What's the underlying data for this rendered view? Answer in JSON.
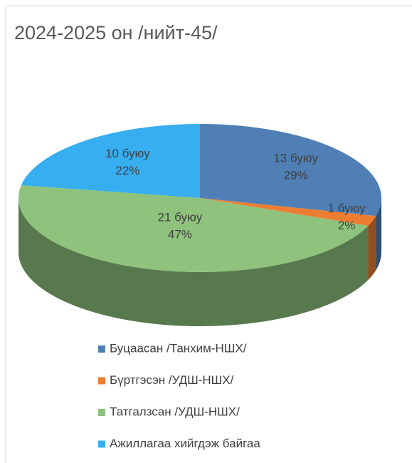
{
  "chart_data": {
    "type": "pie3d",
    "title": "2024-2025 он /нийт-45/",
    "categories": [
      "Буцаасан /Танхим-НШХ/",
      "Бүртгэсэн /УДШ-НШХ/",
      "Татгалзсан /УДШ-НШХ/",
      "Ажиллагаа хийгдэж байгаа"
    ],
    "values": [
      13,
      1,
      21,
      10
    ],
    "value_labels": [
      "13 буюу",
      "1 буюу",
      "21 буюу",
      "10 буюу"
    ],
    "percent_labels": [
      "29%",
      "2%",
      "47%",
      "22%"
    ],
    "colors": [
      "#4f7fb5",
      "#ed7d31",
      "#8fc27c",
      "#36aef0"
    ],
    "legend": "bottom"
  }
}
